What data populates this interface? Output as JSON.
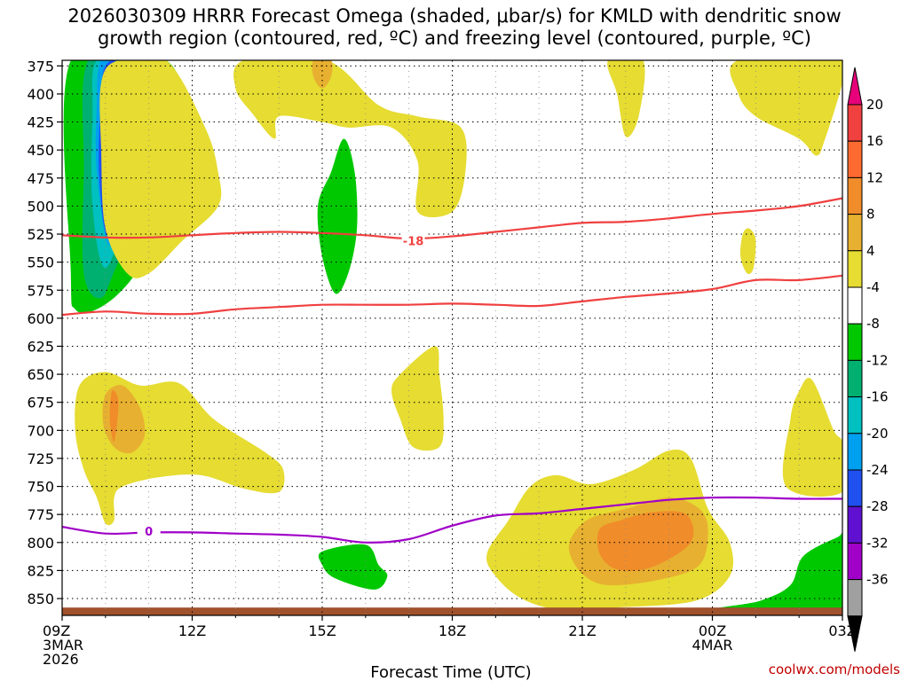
{
  "chart_data": {
    "type": "contour",
    "title_line1": "2026030309 HRRR Forecast Omega (shaded, μbar/s) for KMLD with dendritic snow",
    "title_line2": "growth region (contoured, red, ºC) and freezing level (contoured, purple, ºC)",
    "xlabel": "Forecast Time (UTC)",
    "source": "coolwx.com/models",
    "x_ticks": [
      {
        "hours": 0,
        "lines": [
          "09Z",
          "3MAR",
          "2026"
        ]
      },
      {
        "hours": 3,
        "lines": [
          "12Z"
        ]
      },
      {
        "hours": 6,
        "lines": [
          "15Z"
        ]
      },
      {
        "hours": 9,
        "lines": [
          "18Z"
        ]
      },
      {
        "hours": 12,
        "lines": [
          "21Z"
        ]
      },
      {
        "hours": 15,
        "lines": [
          "00Z",
          "4MAR"
        ]
      },
      {
        "hours": 18,
        "lines": [
          "03Z"
        ]
      }
    ],
    "x_range": [
      0,
      18
    ],
    "y_ticks": [
      375,
      400,
      425,
      450,
      475,
      500,
      525,
      550,
      575,
      600,
      625,
      650,
      675,
      700,
      725,
      750,
      775,
      800,
      825,
      850
    ],
    "y_range": [
      370,
      865
    ],
    "colorbar": {
      "labels": [
        "20",
        "16",
        "12",
        "8",
        "4",
        "-4",
        "-8",
        "-12",
        "-16",
        "-20",
        "-24",
        "-28",
        "-32",
        "-36"
      ],
      "colors": [
        "#e8007a",
        "#f04040",
        "#ff6a30",
        "#f08c2a",
        "#e8b030",
        "#e6dc32",
        "#ffffff",
        "#00c800",
        "#00b070",
        "#00c0c0",
        "#00a0f0",
        "#2050f0",
        "#6010d0",
        "#a000c8",
        "#a0a0a0",
        "#000000"
      ]
    },
    "isotherm_labels": [
      {
        "text": "-18",
        "hours": 8.1,
        "pressure": 531
      },
      {
        "text": "0",
        "hours": 2.0,
        "pressure": 790
      }
    ],
    "lines": {
      "dgz_top": {
        "color": "#f04040",
        "points": [
          [
            0,
            526
          ],
          [
            1,
            528
          ],
          [
            2,
            528
          ],
          [
            3,
            526
          ],
          [
            4,
            524
          ],
          [
            5,
            523
          ],
          [
            6,
            524
          ],
          [
            7,
            526
          ],
          [
            8,
            529
          ],
          [
            9,
            527
          ],
          [
            10,
            523
          ],
          [
            11,
            519
          ],
          [
            12,
            515
          ],
          [
            13,
            514
          ],
          [
            14,
            511
          ],
          [
            15,
            507
          ],
          [
            16,
            504
          ],
          [
            17,
            500
          ],
          [
            18,
            493
          ]
        ]
      },
      "dgz_bottom": {
        "color": "#f04040",
        "points": [
          [
            0,
            597
          ],
          [
            1,
            594
          ],
          [
            2,
            596
          ],
          [
            3,
            596
          ],
          [
            4,
            592
          ],
          [
            5,
            590
          ],
          [
            6,
            588
          ],
          [
            7,
            588
          ],
          [
            8,
            588
          ],
          [
            9,
            587
          ],
          [
            10,
            588
          ],
          [
            11,
            589
          ],
          [
            12,
            585
          ],
          [
            13,
            581
          ],
          [
            14,
            578
          ],
          [
            15,
            574
          ],
          [
            16,
            566
          ],
          [
            17,
            566
          ],
          [
            18,
            562
          ]
        ]
      },
      "freezing_level": {
        "color": "#a000c8",
        "points": [
          [
            0,
            786
          ],
          [
            1,
            792
          ],
          [
            2,
            791
          ],
          [
            3,
            791
          ],
          [
            4,
            792
          ],
          [
            5,
            793
          ],
          [
            6,
            795
          ],
          [
            7,
            800
          ],
          [
            8,
            797
          ],
          [
            9,
            785
          ],
          [
            10,
            776
          ],
          [
            11,
            774
          ],
          [
            12,
            770
          ],
          [
            13,
            766
          ],
          [
            14,
            762
          ],
          [
            15,
            760
          ],
          [
            16,
            760
          ],
          [
            17,
            761
          ],
          [
            18,
            761
          ]
        ]
      }
    },
    "omega_regions": [
      {
        "level": -8,
        "points": [
          [
            0.2,
            370
          ],
          [
            2.4,
            370
          ],
          [
            3.0,
            440
          ],
          [
            3.1,
            480
          ],
          [
            2.4,
            520
          ],
          [
            1.5,
            570
          ],
          [
            0.8,
            592
          ],
          [
            0.3,
            592
          ],
          [
            0.2,
            560
          ]
        ]
      },
      {
        "level": -12,
        "points": [
          [
            0.6,
            370
          ],
          [
            1.9,
            370
          ],
          [
            2.4,
            410
          ],
          [
            2.6,
            450
          ],
          [
            2.1,
            495
          ],
          [
            1.3,
            550
          ],
          [
            0.9,
            582
          ],
          [
            0.5,
            560
          ],
          [
            0.5,
            470
          ]
        ]
      },
      {
        "level": -16,
        "points": [
          [
            0.8,
            370
          ],
          [
            1.7,
            370
          ],
          [
            2.0,
            410
          ],
          [
            2.0,
            450
          ],
          [
            1.6,
            495
          ],
          [
            1.0,
            555
          ],
          [
            0.7,
            500
          ],
          [
            0.7,
            420
          ]
        ]
      },
      {
        "level": -20,
        "points": [
          [
            0.9,
            370
          ],
          [
            1.5,
            370
          ],
          [
            1.7,
            420
          ],
          [
            1.6,
            470
          ],
          [
            1.1,
            535
          ],
          [
            0.8,
            470
          ],
          [
            0.8,
            410
          ]
        ]
      },
      {
        "level": -24,
        "points": [
          [
            1.0,
            375
          ],
          [
            1.3,
            375
          ],
          [
            1.55,
            430
          ],
          [
            1.45,
            490
          ],
          [
            1.05,
            528
          ],
          [
            0.85,
            470
          ],
          [
            0.9,
            400
          ]
        ]
      },
      {
        "level": -28,
        "points": [
          [
            1.05,
            400
          ],
          [
            1.4,
            430
          ],
          [
            1.3,
            485
          ],
          [
            1.05,
            508
          ],
          [
            0.95,
            460
          ]
        ]
      },
      {
        "level": -8,
        "points": [
          [
            6.2,
            470
          ],
          [
            6.5,
            440
          ],
          [
            6.75,
            470
          ],
          [
            6.8,
            520
          ],
          [
            6.6,
            560
          ],
          [
            6.3,
            578
          ],
          [
            6.0,
            545
          ],
          [
            5.9,
            500
          ]
        ]
      },
      {
        "level": -8,
        "points": [
          [
            6.0,
            808
          ],
          [
            7.0,
            802
          ],
          [
            7.3,
            820
          ],
          [
            7.5,
            830
          ],
          [
            7.2,
            842
          ],
          [
            6.3,
            832
          ],
          [
            6.0,
            820
          ]
        ]
      },
      {
        "level": -8,
        "points": [
          [
            15.1,
            860
          ],
          [
            16.1,
            852
          ],
          [
            16.8,
            838
          ],
          [
            17.1,
            812
          ],
          [
            17.9,
            795
          ],
          [
            18.0,
            795
          ],
          [
            18.0,
            860
          ]
        ]
      },
      {
        "level": -8,
        "points": [
          [
            16.9,
            865
          ],
          [
            17.5,
            840
          ],
          [
            18.0,
            830
          ],
          [
            18.0,
            865
          ]
        ]
      },
      {
        "level": 4,
        "points": [
          [
            1.3,
            370
          ],
          [
            2.4,
            370
          ],
          [
            3.3,
            430
          ],
          [
            3.6,
            470
          ],
          [
            3.6,
            500
          ],
          [
            2.8,
            530
          ],
          [
            2.0,
            560
          ],
          [
            1.5,
            560
          ],
          [
            1.0,
            520
          ],
          [
            0.9,
            450
          ],
          [
            0.9,
            390
          ]
        ]
      },
      {
        "level": 4,
        "points": [
          [
            4.2,
            370
          ],
          [
            6.1,
            370
          ],
          [
            7.3,
            410
          ],
          [
            8.2,
            420
          ],
          [
            9.2,
            430
          ],
          [
            9.3,
            470
          ],
          [
            9.0,
            505
          ],
          [
            8.2,
            505
          ],
          [
            8.2,
            460
          ],
          [
            7.6,
            430
          ],
          [
            6.6,
            430
          ],
          [
            6.0,
            425
          ],
          [
            5.0,
            420
          ],
          [
            4.9,
            440
          ],
          [
            4.4,
            418
          ],
          [
            4.0,
            395
          ]
        ]
      },
      {
        "level": 4,
        "points": [
          [
            12.6,
            370
          ],
          [
            13.4,
            370
          ],
          [
            13.3,
            420
          ],
          [
            13.0,
            438
          ],
          [
            12.8,
            400
          ]
        ]
      },
      {
        "level": 4,
        "points": [
          [
            15.6,
            370
          ],
          [
            18.0,
            370
          ],
          [
            18.0,
            390
          ],
          [
            17.6,
            440
          ],
          [
            17.4,
            455
          ],
          [
            17.0,
            440
          ],
          [
            16.0,
            420
          ],
          [
            15.6,
            400
          ]
        ]
      },
      {
        "level": 4,
        "points": [
          [
            15.85,
            520
          ],
          [
            16.0,
            530
          ],
          [
            15.95,
            555
          ],
          [
            15.8,
            560
          ],
          [
            15.65,
            545
          ],
          [
            15.7,
            525
          ]
        ]
      },
      {
        "level": 4,
        "points": [
          [
            0.4,
            660
          ],
          [
            1.0,
            648
          ],
          [
            1.8,
            660
          ],
          [
            2.7,
            658
          ],
          [
            3.5,
            690
          ],
          [
            4.7,
            720
          ],
          [
            5.1,
            735
          ],
          [
            5.0,
            755
          ],
          [
            4.2,
            752
          ],
          [
            3.2,
            740
          ],
          [
            2.2,
            742
          ],
          [
            1.4,
            750
          ],
          [
            1.2,
            760
          ],
          [
            1.2,
            780
          ],
          [
            1.0,
            783
          ],
          [
            0.8,
            760
          ],
          [
            0.5,
            735
          ],
          [
            0.3,
            700
          ]
        ]
      },
      {
        "level": 4,
        "points": [
          [
            7.8,
            650
          ],
          [
            8.6,
            625
          ],
          [
            8.7,
            650
          ],
          [
            8.8,
            690
          ],
          [
            8.7,
            715
          ],
          [
            8.1,
            715
          ],
          [
            7.8,
            690
          ],
          [
            7.6,
            665
          ]
        ]
      },
      {
        "level": 4,
        "points": [
          [
            9.8,
            810
          ],
          [
            10.3,
            780
          ],
          [
            10.8,
            750
          ],
          [
            11.4,
            740
          ],
          [
            12.2,
            748
          ],
          [
            13.2,
            735
          ],
          [
            14.0,
            718
          ],
          [
            14.5,
            725
          ],
          [
            14.9,
            770
          ],
          [
            15.4,
            800
          ],
          [
            15.4,
            830
          ],
          [
            14.6,
            852
          ],
          [
            12.8,
            858
          ],
          [
            11.5,
            860
          ],
          [
            10.6,
            850
          ],
          [
            10.0,
            830
          ]
        ]
      },
      {
        "level": 4,
        "points": [
          [
            16.7,
            750
          ],
          [
            16.8,
            690
          ],
          [
            17.0,
            665
          ],
          [
            17.3,
            655
          ],
          [
            17.8,
            700
          ],
          [
            18.0,
            712
          ],
          [
            18.0,
            755
          ]
        ]
      },
      {
        "level": 8,
        "points": [
          [
            1.0,
            668
          ],
          [
            1.4,
            660
          ],
          [
            1.8,
            680
          ],
          [
            1.9,
            705
          ],
          [
            1.6,
            720
          ],
          [
            1.2,
            715
          ],
          [
            0.95,
            695
          ]
        ]
      },
      {
        "level": 8,
        "points": [
          [
            5.8,
            370
          ],
          [
            6.2,
            370
          ],
          [
            6.2,
            385
          ],
          [
            6.0,
            395
          ],
          [
            5.8,
            385
          ]
        ]
      },
      {
        "level": 8,
        "points": [
          [
            11.8,
            792
          ],
          [
            12.2,
            778
          ],
          [
            13.0,
            770
          ],
          [
            14.0,
            760
          ],
          [
            14.7,
            770
          ],
          [
            14.9,
            790
          ],
          [
            14.7,
            820
          ],
          [
            13.8,
            833
          ],
          [
            12.6,
            838
          ],
          [
            12.0,
            828
          ],
          [
            11.7,
            808
          ]
        ]
      },
      {
        "level": 12,
        "points": [
          [
            1.15,
            665
          ],
          [
            1.3,
            675
          ],
          [
            1.2,
            710
          ],
          [
            1.1,
            690
          ]
        ]
      },
      {
        "level": 12,
        "points": [
          [
            12.4,
            788
          ],
          [
            12.9,
            780
          ],
          [
            13.6,
            773
          ],
          [
            14.4,
            775
          ],
          [
            14.5,
            800
          ],
          [
            13.6,
            822
          ],
          [
            12.8,
            824
          ],
          [
            12.4,
            810
          ]
        ]
      }
    ],
    "terrain": {
      "color": "#a0522d",
      "top_pressure": 858
    },
    "grid": true
  }
}
